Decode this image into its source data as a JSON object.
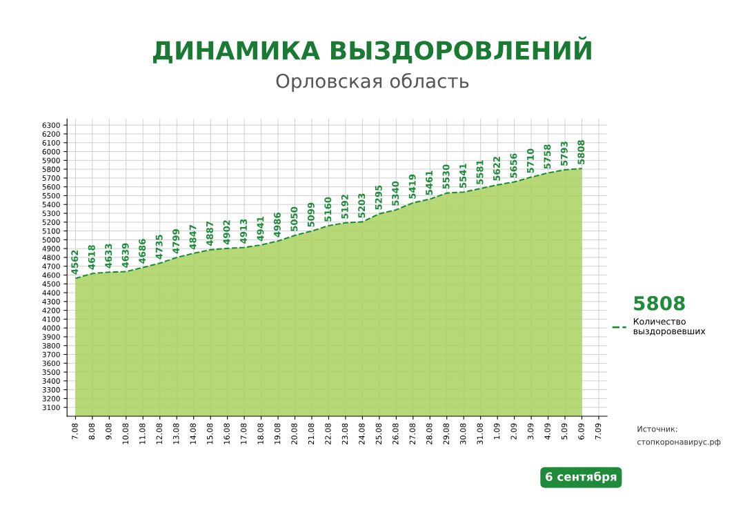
{
  "chart_data": {
    "type": "area",
    "title": "ДИНАМИКА ВЫЗДОРОВЛЕНИЙ",
    "subtitle": "Орловская область",
    "categories": [
      "7.08",
      "8.08",
      "9.08",
      "10.08",
      "11.08",
      "12.08",
      "13.08",
      "14.08",
      "15.08",
      "16.08",
      "17.08",
      "18.08",
      "19.08",
      "20.08",
      "21.08",
      "22.08",
      "23.08",
      "24.08",
      "25.08",
      "26.08",
      "27.08",
      "28.08",
      "29.08",
      "30.08",
      "31.08",
      "1.09",
      "2.09",
      "3.09",
      "4.09",
      "5.09",
      "6.09",
      "7.09"
    ],
    "series": [
      {
        "name": "Количество выздоровевших",
        "color": "#a9d15e",
        "values": [
          4562,
          4618,
          4633,
          4639,
          4686,
          4735,
          4799,
          4847,
          4887,
          4902,
          4913,
          4941,
          4986,
          5050,
          5099,
          5160,
          5192,
          5203,
          5295,
          5340,
          5419,
          5461,
          5530,
          5541,
          5581,
          5622,
          5656,
          5710,
          5758,
          5793,
          5808,
          null
        ]
      }
    ],
    "ylim": [
      3000,
      6370
    ],
    "yticks": [
      3100,
      3200,
      3300,
      3400,
      3500,
      3600,
      3700,
      3800,
      3900,
      4000,
      4100,
      4200,
      4300,
      4400,
      4500,
      4600,
      4700,
      4800,
      4900,
      5000,
      5100,
      5200,
      5300,
      5400,
      5500,
      5600,
      5700,
      5800,
      5900,
      6000,
      6100,
      6200,
      6300
    ],
    "grid": true,
    "data_labels": true,
    "line_style": "dashed",
    "marker": "none",
    "legend": "right",
    "annotations": [
      "5808",
      "6 сентября",
      "Источник:",
      "стопкоронавирус.рф"
    ]
  }
}
